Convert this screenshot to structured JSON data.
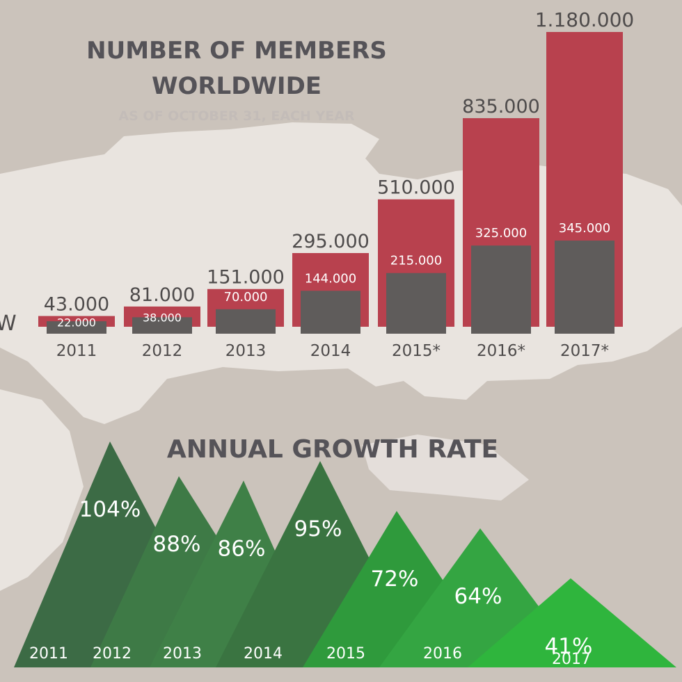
{
  "chart_data": [
    {
      "type": "bar",
      "title": "NUMBER OF MEMBERS WORLDWIDE",
      "subtitle": "AS OF OCTOBER 31, EACH YEAR",
      "categories": [
        "2011",
        "2012",
        "2013",
        "2014",
        "2015*",
        "2016*",
        "2017*"
      ],
      "series": [
        {
          "values": [
            43000,
            81000,
            151000,
            295000,
            510000,
            835000,
            1180000
          ],
          "labels": [
            "43.000",
            "81.000",
            "151.000",
            "295.000",
            "510.000",
            "835.000",
            "1.180.000"
          ],
          "color": "#b8414e"
        },
        {
          "values": [
            22000,
            38000,
            70000,
            144000,
            215000,
            325000,
            345000
          ],
          "labels": [
            "22.000",
            "38.000",
            "70.000",
            "144.000",
            "215.000",
            "325.000",
            "345.000"
          ],
          "color": "#5f5c5b"
        }
      ],
      "ylim": [
        0,
        1180000
      ],
      "grid": false,
      "legend": "none"
    },
    {
      "type": "area",
      "title": "ANNUAL GROWTH RATE",
      "categories": [
        "2011",
        "2012",
        "2013",
        "2014",
        "2015",
        "2016",
        "2017"
      ],
      "values": [
        104,
        88,
        86,
        95,
        72,
        64,
        41
      ],
      "labels": [
        "104%",
        "88%",
        "86%",
        "95%",
        "72%",
        "64%",
        "41%"
      ],
      "colors": [
        "#3c6b45",
        "#3e7a46",
        "#3f8047",
        "#3a7441",
        "#2f9a3c",
        "#34a542",
        "#2fb53d"
      ],
      "grid": false,
      "legend": "none"
    }
  ],
  "edge_letter": "W"
}
